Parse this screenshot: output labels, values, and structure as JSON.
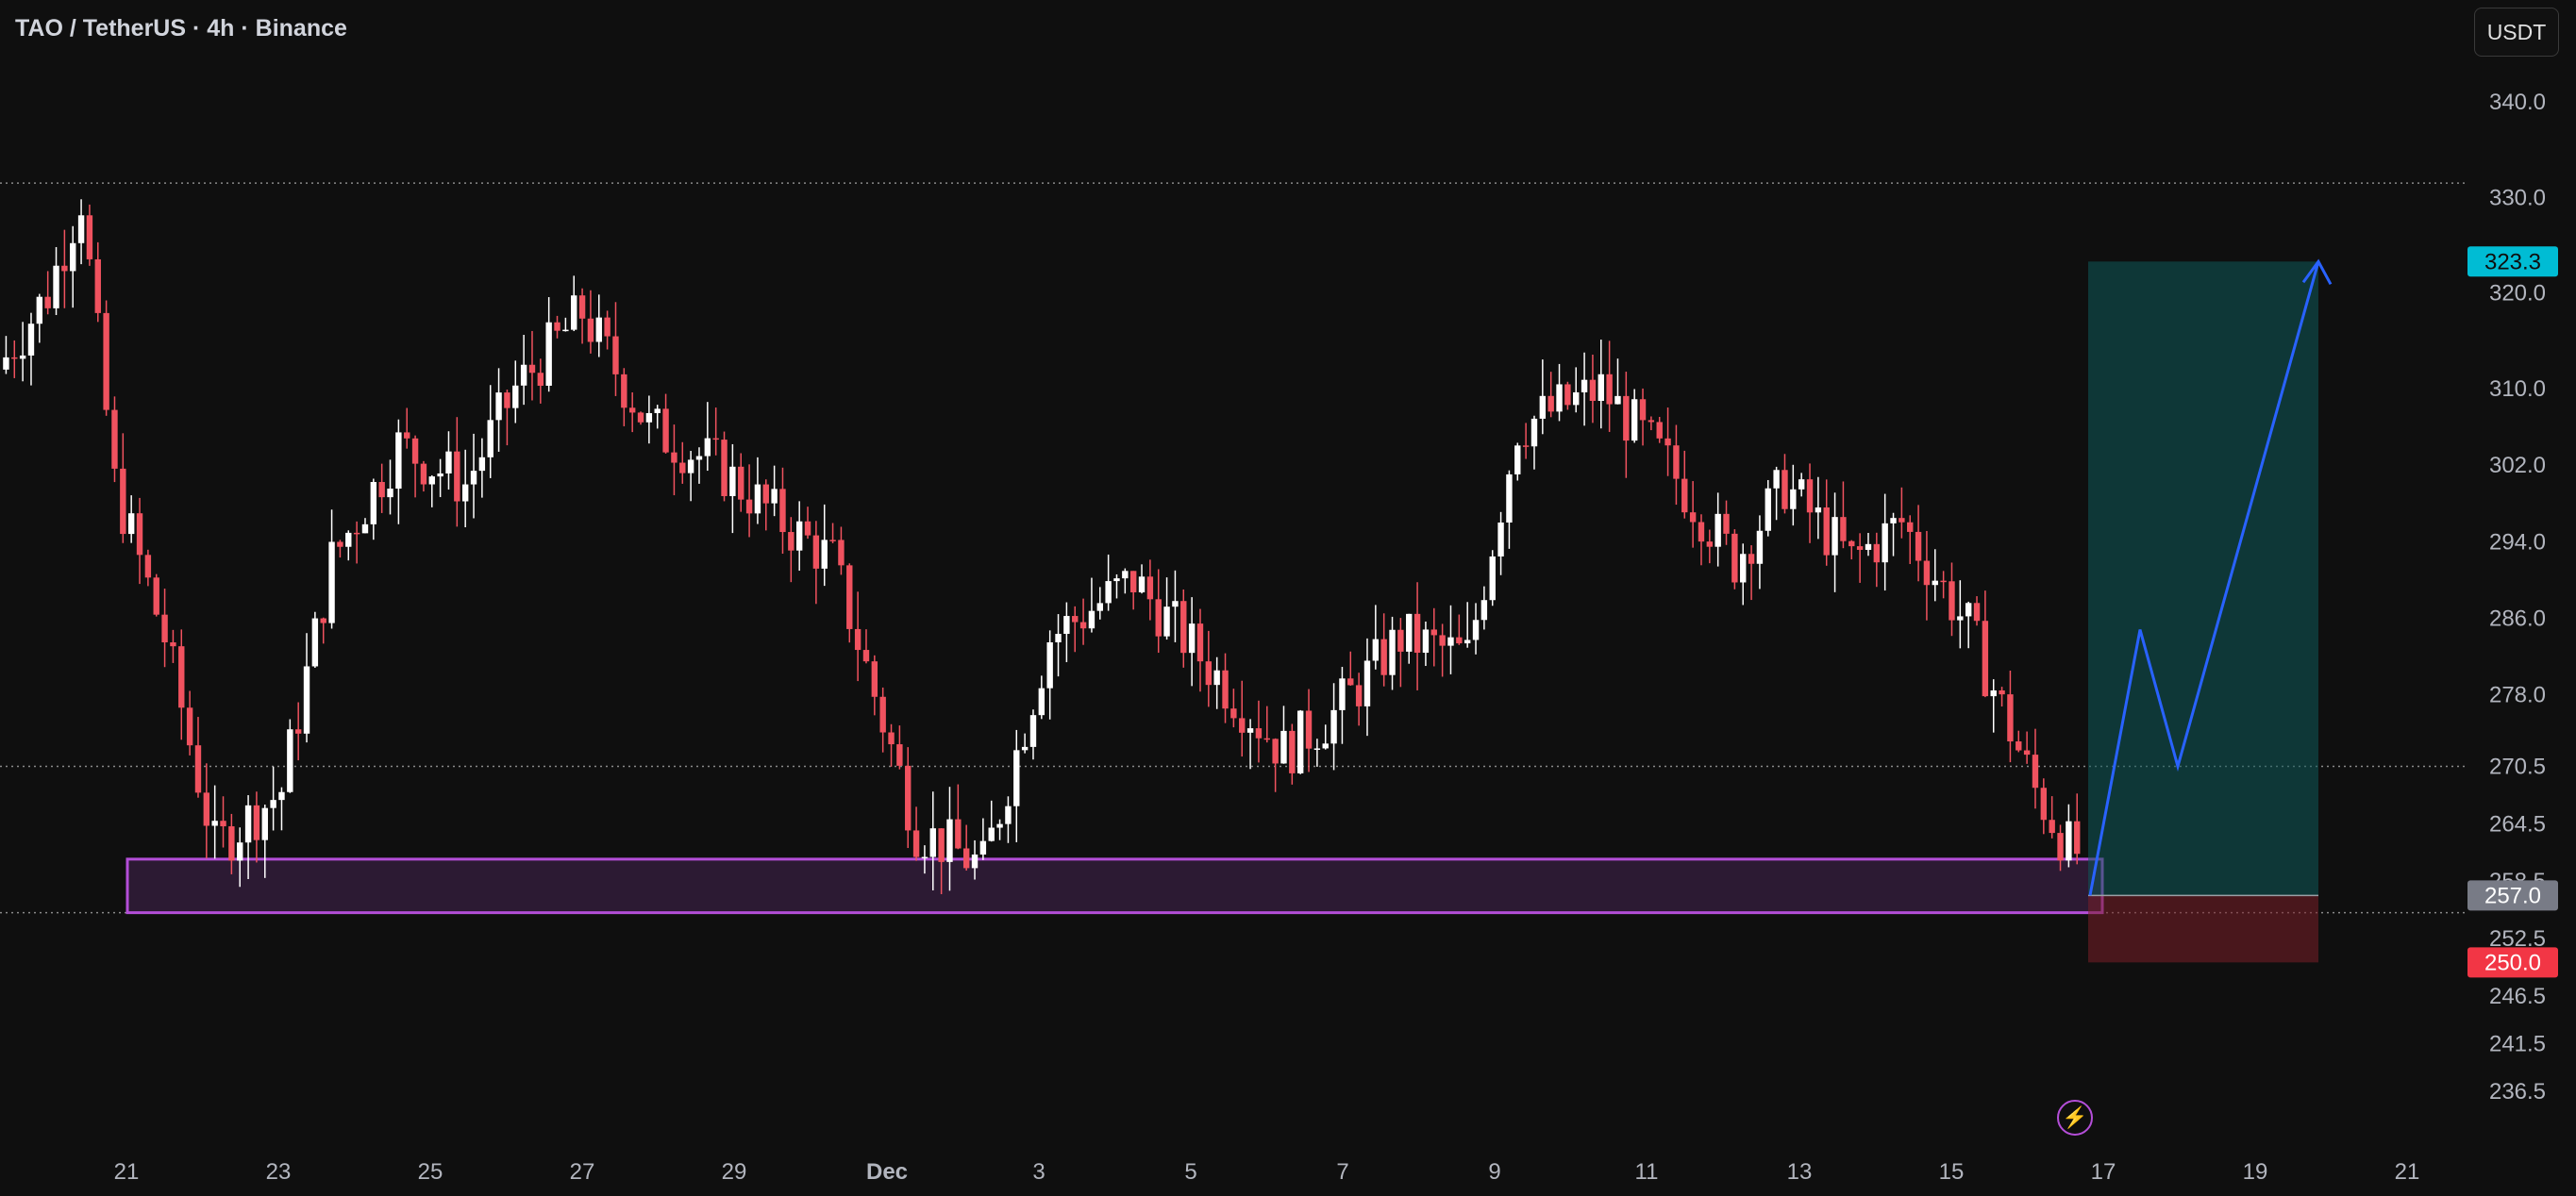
{
  "header": {
    "title": "TAO / TetherUS · 4h · Binance",
    "currency_label": "USDT"
  },
  "chart_data": {
    "type": "candlestick",
    "symbol": "TAO / TetherUS",
    "interval": "4h",
    "exchange": "Binance",
    "y_axis": {
      "ticks": [
        340.0,
        330.0,
        320.0,
        310.0,
        302.0,
        294.0,
        286.0,
        278.0,
        270.5,
        264.5,
        258.5,
        252.5,
        246.5,
        241.5,
        236.5
      ],
      "side": "right"
    },
    "x_axis": {
      "ticks": [
        "21",
        "23",
        "25",
        "27",
        "29",
        "Dec",
        "3",
        "5",
        "7",
        "9",
        "11",
        "13",
        "15",
        "17",
        "19",
        "21"
      ]
    },
    "price_labels": [
      {
        "value": "323.3",
        "color": "#00bcd4",
        "text_color": "#0f0f0f"
      },
      {
        "value": "257.0",
        "color": "#787b86",
        "text_color": "#ffffff"
      },
      {
        "value": "250.0",
        "color": "#f23645",
        "text_color": "#ffffff"
      }
    ],
    "horizontal_lines": [
      331.5,
      270.5,
      255.2
    ],
    "demand_zone": {
      "top": 260.8,
      "bottom": 255.2,
      "color": "#b44ed8"
    },
    "long_position": {
      "entry": 257.0,
      "target": 323.3,
      "stop": 250.0,
      "profit_color": "#0e5a5a",
      "loss_color": "#7a1f28"
    },
    "projection_path": [
      [
        257.0,
        0
      ],
      [
        284.8,
        1
      ],
      [
        270.5,
        2
      ],
      [
        323.3,
        3
      ]
    ],
    "colors": {
      "up": "#ffffff",
      "down": "#f0525f",
      "background": "#0f0f0f",
      "projection": "#2962ff"
    },
    "candles_summary": {
      "count": 198,
      "high": 333.5,
      "low": 255.0,
      "last_close": 260.5
    }
  }
}
